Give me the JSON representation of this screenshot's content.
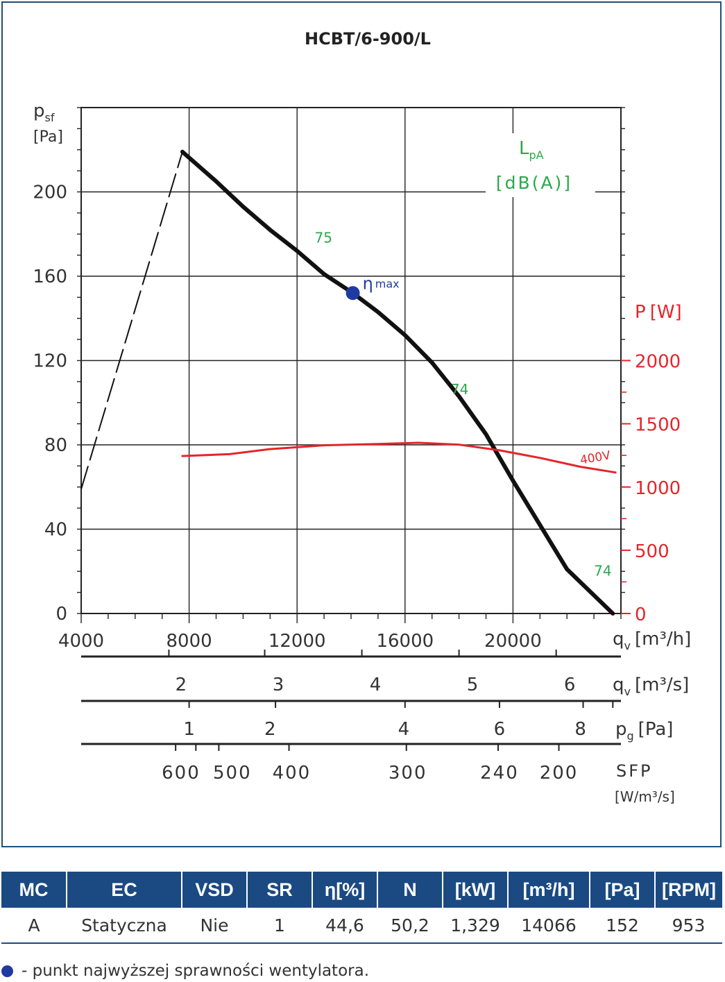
{
  "chart_data": {
    "type": "line",
    "title": "HCBT/6-900/L",
    "y_label_main": "p",
    "y_label_sub": "sf",
    "y_unit": "[Pa]",
    "ylim": [
      0,
      240
    ],
    "y_ticks": [
      0,
      40,
      80,
      120,
      160,
      200
    ],
    "xlim": [
      4000,
      24000
    ],
    "x_ticks": [
      4000,
      8000,
      12000,
      16000,
      20000
    ],
    "x_label_main": "q",
    "x_label_sub": "v",
    "x_unit": "[m³/h]",
    "y2_label": "P",
    "y2_unit": "[W]",
    "y2lim": [
      0,
      2000
    ],
    "y2_ticks": [
      0,
      500,
      1000,
      1500,
      2000
    ],
    "grid": true,
    "noise_label_main": "L",
    "noise_label_sub": "pA",
    "noise_unit": "[dB(A)]",
    "series": [
      {
        "id": "pressure",
        "color": "#111111",
        "points": [
          [
            7750,
            219
          ],
          [
            9000,
            205
          ],
          [
            10000,
            193
          ],
          [
            11000,
            182
          ],
          [
            12000,
            172
          ],
          [
            13000,
            161
          ],
          [
            14066,
            152
          ],
          [
            15000,
            143
          ],
          [
            16000,
            132
          ],
          [
            17000,
            119
          ],
          [
            18000,
            103
          ],
          [
            19000,
            85
          ],
          [
            20000,
            63
          ],
          [
            21000,
            42
          ],
          [
            22000,
            21
          ],
          [
            23700,
            0
          ]
        ]
      },
      {
        "id": "pressure-unstable",
        "style": "dashed",
        "color": "#111111",
        "points": [
          [
            4000,
            59
          ],
          [
            7750,
            219
          ]
        ]
      },
      {
        "name": "400V",
        "axis": "y2",
        "color": "#e3262b",
        "points": [
          [
            7750,
            1245
          ],
          [
            9500,
            1260
          ],
          [
            11000,
            1300
          ],
          [
            13000,
            1330
          ],
          [
            15000,
            1340
          ],
          [
            16500,
            1350
          ],
          [
            18000,
            1335
          ],
          [
            19500,
            1290
          ],
          [
            21000,
            1230
          ],
          [
            22500,
            1160
          ],
          [
            23800,
            1115
          ]
        ]
      }
    ],
    "bep": {
      "x": 14066,
      "y": 152,
      "label": "η",
      "label_sub": "max",
      "color": "#1f3aa0"
    },
    "noise_labels": [
      {
        "x": 12650,
        "y": 176,
        "text": "75"
      },
      {
        "x": 17700,
        "y": 104,
        "text": "74"
      },
      {
        "x": 23000,
        "y": 18,
        "text": "74"
      }
    ],
    "secondary_scales": [
      {
        "id": "qv_m3s",
        "label_main": "q",
        "label_sub": "v",
        "unit": "[m³/s]",
        "labels": [
          {
            "q": 7700,
            "text": "2"
          },
          {
            "q": 11300,
            "text": "3"
          },
          {
            "q": 14900,
            "text": "4"
          },
          {
            "q": 18500,
            "text": "5"
          },
          {
            "q": 22100,
            "text": "6"
          }
        ],
        "ticks": [
          7250,
          10800,
          14400,
          18000,
          21600
        ]
      },
      {
        "id": "pg",
        "label_main": "p",
        "label_sub": "g",
        "unit": "[Pa]",
        "labels": [
          {
            "q": 8000,
            "text": "1"
          },
          {
            "q": 11000,
            "text": "2"
          },
          {
            "q": 15950,
            "text": "4"
          },
          {
            "q": 19500,
            "text": "6"
          },
          {
            "q": 22500,
            "text": "8"
          }
        ],
        "ticks": [
          8000,
          11200,
          16000,
          19500,
          22600,
          23700
        ]
      },
      {
        "id": "sfp",
        "label_main": "SFP",
        "unit": "[W/m³/s]",
        "labels": [
          {
            "q": 7700,
            "text": "600"
          },
          {
            "q": 9600,
            "text": "500"
          },
          {
            "q": 11800,
            "text": "400"
          },
          {
            "q": 16100,
            "text": "300"
          },
          {
            "q": 19500,
            "text": "240"
          },
          {
            "q": 21700,
            "text": "200"
          }
        ],
        "ticks": [
          7500,
          8250,
          9100,
          11700,
          16050,
          19450,
          21700
        ]
      }
    ]
  },
  "table": {
    "headers": [
      "MC",
      "EC",
      "VSD",
      "SR",
      "η[%]",
      "N",
      "[kW]",
      "[m³/h]",
      "[Pa]",
      "[RPM]"
    ],
    "row": [
      "A",
      "Statyczna",
      "Nie",
      "1",
      "44,6",
      "50,2",
      "1,329",
      "14066",
      "152",
      "953"
    ]
  },
  "note": "- punkt najwyższej sprawności wentylatora."
}
